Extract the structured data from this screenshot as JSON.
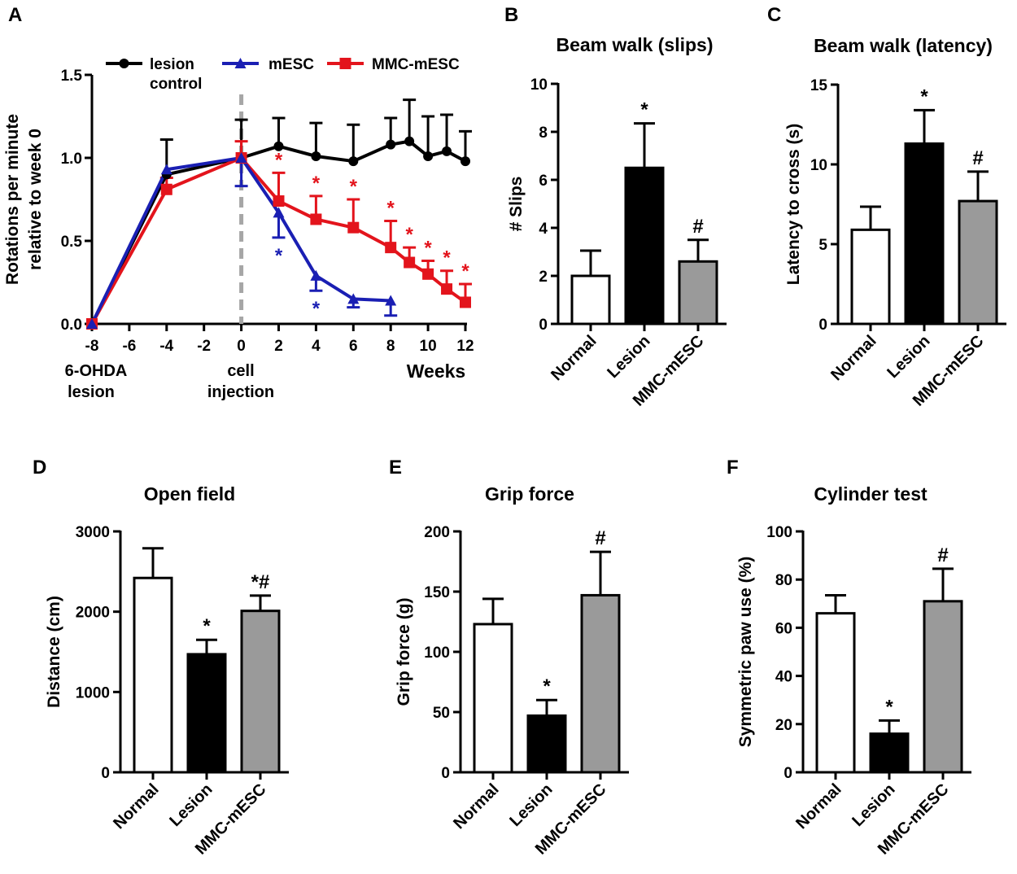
{
  "figure": {
    "colors": {
      "lesion": "#000000",
      "mesc": "#1a1fb3",
      "mmc": "#e3141c",
      "gray": "#9a9a9a",
      "white": "#ffffff",
      "dashed": "#a6a6a6"
    }
  },
  "chart_data": [
    {
      "panel": "A",
      "type": "line",
      "title": "",
      "ylabel": "Rotations per minute relative to week 0",
      "ylim": [
        0,
        1.5
      ],
      "yticks": [
        "0.0",
        "0.5",
        "1.0",
        "1.5"
      ],
      "xlim": [
        -8,
        12
      ],
      "xticks": [
        "-8",
        "-6",
        "-4",
        "-2",
        "0",
        "2",
        "4",
        "6",
        "8",
        "10",
        "12"
      ],
      "xlabel": "Weeks",
      "annotations": {
        "lesion_event": "6-OHDA lesion",
        "injection_event": "cell injection"
      },
      "series": [
        {
          "name": "lesion control",
          "color_key": "lesion",
          "marker": "circle",
          "x": [
            -8,
            -4,
            0,
            2,
            4,
            6,
            8,
            9,
            10,
            11,
            12
          ],
          "y": [
            0.0,
            0.9,
            1.0,
            1.07,
            1.01,
            0.98,
            1.08,
            1.1,
            1.01,
            1.04,
            0.98
          ],
          "err": [
            0.0,
            0.21,
            0.23,
            0.17,
            0.2,
            0.22,
            0.16,
            0.25,
            0.24,
            0.22,
            0.18
          ],
          "err_dir": "up"
        },
        {
          "name": "mESC",
          "color_key": "mesc",
          "marker": "triangle",
          "x": [
            -8,
            -4,
            0,
            2,
            4,
            6,
            8
          ],
          "y": [
            0.0,
            0.93,
            1.0,
            0.67,
            0.29,
            0.15,
            0.14
          ],
          "err": [
            0.0,
            0.0,
            0.17,
            0.15,
            0.09,
            0.05,
            0.09
          ],
          "err_dir": "down",
          "sig": [
            {
              "x": 2,
              "label": "*"
            },
            {
              "x": 4,
              "label": "*"
            }
          ]
        },
        {
          "name": "MMC-mESC",
          "color_key": "mmc",
          "marker": "square",
          "x": [
            -8,
            -4,
            0,
            2,
            4,
            6,
            8,
            9,
            10,
            11,
            12
          ],
          "y": [
            0.0,
            0.81,
            1.0,
            0.74,
            0.63,
            0.58,
            0.46,
            0.37,
            0.3,
            0.21,
            0.13
          ],
          "err": [
            0.0,
            0.07,
            0.1,
            0.17,
            0.14,
            0.17,
            0.16,
            0.09,
            0.08,
            0.11,
            0.11
          ],
          "err_dir": "up",
          "sig": [
            {
              "x": 2,
              "label": "*"
            },
            {
              "x": 4,
              "label": "*"
            },
            {
              "x": 6,
              "label": "*"
            },
            {
              "x": 8,
              "label": "*"
            },
            {
              "x": 9,
              "label": "*"
            },
            {
              "x": 10,
              "label": "*"
            },
            {
              "x": 11,
              "label": "*"
            },
            {
              "x": 12,
              "label": "*"
            }
          ]
        }
      ]
    },
    {
      "panel": "B",
      "type": "bar",
      "title": "Beam walk (slips)",
      "ylabel": "# Slips",
      "categories": [
        "Normal",
        "Lesion",
        "MMC-mESC"
      ],
      "values": [
        2.0,
        6.5,
        2.6
      ],
      "errors": [
        1.05,
        1.85,
        0.9
      ],
      "marks": [
        "",
        "*",
        "#"
      ],
      "fills": [
        "white",
        "lesion",
        "gray"
      ],
      "ylim": [
        0,
        10
      ],
      "yticks": [
        0,
        2,
        4,
        6,
        8,
        10
      ]
    },
    {
      "panel": "C",
      "type": "bar",
      "title": "Beam walk (latency)",
      "ylabel": "Latency to cross (s)",
      "categories": [
        "Normal",
        "Lesion",
        "MMC-mESC"
      ],
      "values": [
        5.9,
        11.3,
        7.7
      ],
      "errors": [
        1.45,
        2.1,
        1.85
      ],
      "marks": [
        "",
        "*",
        "#"
      ],
      "fills": [
        "white",
        "lesion",
        "gray"
      ],
      "ylim": [
        0,
        15
      ],
      "yticks": [
        0,
        5,
        10,
        15
      ]
    },
    {
      "panel": "D",
      "type": "bar",
      "title": "Open field",
      "ylabel": "Distance (cm)",
      "categories": [
        "Normal",
        "Lesion",
        "MMC-mESC"
      ],
      "values": [
        2420,
        1470,
        2010
      ],
      "errors": [
        370,
        180,
        190
      ],
      "marks": [
        "",
        "*",
        "*#"
      ],
      "fills": [
        "white",
        "lesion",
        "gray"
      ],
      "ylim": [
        0,
        3000
      ],
      "yticks": [
        0,
        1000,
        2000,
        3000
      ]
    },
    {
      "panel": "E",
      "type": "bar",
      "title": "Grip force",
      "ylabel": "Grip force (g)",
      "categories": [
        "Normal",
        "Lesion",
        "MMC-mESC"
      ],
      "values": [
        123,
        47,
        147
      ],
      "errors": [
        21,
        13,
        36
      ],
      "marks": [
        "",
        "*",
        "#"
      ],
      "fills": [
        "white",
        "lesion",
        "gray"
      ],
      "ylim": [
        0,
        200
      ],
      "yticks": [
        0,
        50,
        100,
        150,
        200
      ]
    },
    {
      "panel": "F",
      "type": "bar",
      "title": "Cylinder test",
      "ylabel": "Symmetric paw use (%)",
      "categories": [
        "Normal",
        "Lesion",
        "MMC-mESC"
      ],
      "values": [
        66,
        16,
        71
      ],
      "errors": [
        7.5,
        5.5,
        13.5
      ],
      "marks": [
        "",
        "*",
        "#"
      ],
      "fills": [
        "white",
        "lesion",
        "gray"
      ],
      "ylim": [
        0,
        100
      ],
      "yticks": [
        0,
        20,
        40,
        60,
        80,
        100
      ]
    }
  ]
}
